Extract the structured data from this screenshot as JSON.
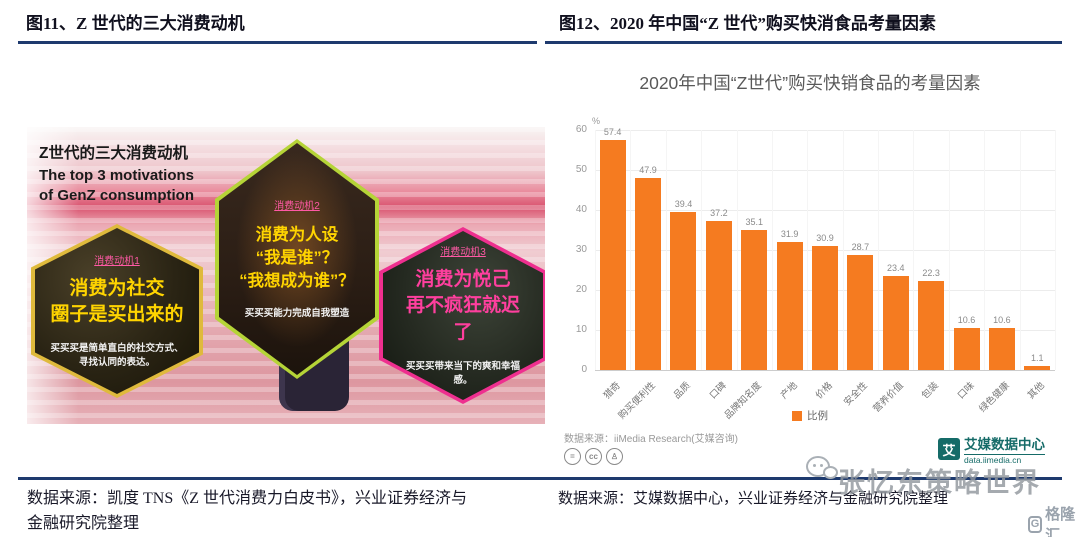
{
  "figure_left": {
    "header": "图11、Z 世代的三大消费动机",
    "image": {
      "title_cn": "Z世代的三大消费动机",
      "title_en1": "The top 3 motivations",
      "title_en2": "of GenZ consumption",
      "hexagons": [
        {
          "tag": "消费动机1",
          "line1": "消费为社交",
          "line2": "圈子是买出来的",
          "desc1": "买买买是简单直白的社交方式、",
          "desc2": "寻找认同的表达。",
          "border_color": "#dfba3c",
          "text_color": "#ffd400"
        },
        {
          "tag": "消费动机2",
          "line1": "消费为人设",
          "line2": "“我是谁”？",
          "line3": "“我想成为谁”？",
          "desc1": "买买买能力完成自我塑造",
          "border_color": "#b5d437",
          "text_color": "#ffd400"
        },
        {
          "tag": "消费动机3",
          "line1": "消费为悦己",
          "line2": "再不疯狂就迟了",
          "desc1": "买买买带来当下的爽和幸福感。",
          "border_color": "#ee2f8f",
          "text_color": "#ff3f9e"
        }
      ]
    },
    "caption_line1": "数据来源：凯度 TNS《Z 世代消费力白皮书》，兴业证券经济与",
    "caption_line2": "金融研究院整理"
  },
  "figure_right": {
    "header": "图12、2020 年中国“Z 世代”购买快消食品考量因素",
    "caption": "数据来源：艾媒数据中心，兴业证券经济与金融研究院整理"
  },
  "chart_data": {
    "type": "bar",
    "title": "2020年中国“Z世代”购买快销食品的考量因素",
    "categories": [
      "猎奇",
      "购买便利性",
      "品质",
      "口碑",
      "品牌知名度",
      "产地",
      "价格",
      "安全性",
      "营养价值",
      "包装",
      "口味",
      "绿色健康",
      "其他"
    ],
    "values": [
      57.4,
      47.9,
      39.4,
      37.2,
      35.1,
      31.9,
      30.9,
      28.7,
      23.4,
      22.3,
      10.6,
      10.6,
      1.1
    ],
    "xlabel": "",
    "ylabel": "%",
    "ylim": [
      0,
      60
    ],
    "yticks": [
      0,
      10,
      20,
      30,
      40,
      50,
      60
    ],
    "grid": true,
    "legend": [
      "比例"
    ],
    "legend_position": "bottom",
    "bar_color": "#f57b20",
    "source": "数据来源：iiMedia Research(艾媒咨询)",
    "source_icons": [
      {
        "name": "equals-circle-icon",
        "glyph": "="
      },
      {
        "name": "cc-icon",
        "glyph": "cc"
      },
      {
        "name": "attribution-person-icon",
        "glyph": "♙"
      }
    ]
  },
  "logos": {
    "iimedia_glyph": "艾",
    "iimedia_name": "艾媒数据中心",
    "iimedia_url": "data.iimedia.cn",
    "gelonghui_glyph": "G",
    "gelonghui_text": "格隆汇"
  },
  "watermark": {
    "text": "张忆东策略世界"
  }
}
